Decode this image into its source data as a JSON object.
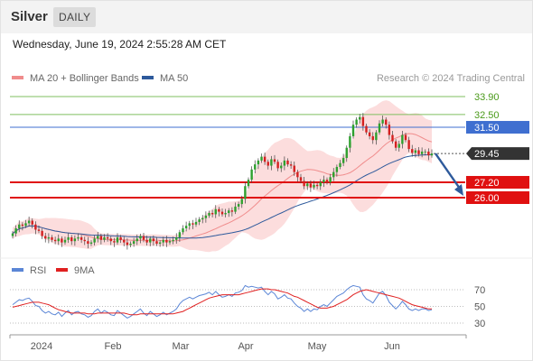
{
  "header": {
    "title": "Silver",
    "timeframe": "DAILY"
  },
  "timestamp": "Wednesday, June 19, 2024 2:55:28 AM CET",
  "copyright": "Research © 2024 Trading Central",
  "legend_main": [
    {
      "label": "MA 20 + Bollinger Bands",
      "color": "#f08c8c"
    },
    {
      "label": "MA 50",
      "color": "#2e5a9c"
    }
  ],
  "legend_rsi": [
    {
      "label": "RSI",
      "color": "#5b86d6"
    },
    {
      "label": "9MA",
      "color": "#e02020"
    }
  ],
  "colors": {
    "up": "#2ea02e",
    "down": "#d42020",
    "resistance": "#7fbf5f",
    "pivot": "#3f6fd0",
    "support": "#e01010",
    "current": "#333333",
    "forecast_arrow": "#2e5a9c"
  },
  "chart_data": {
    "type": "candlestick",
    "x_ticks": [
      "2024",
      "Feb",
      "Mar",
      "Apr",
      "May",
      "Jun"
    ],
    "ylim": [
      21.5,
      35.0
    ],
    "levels": [
      {
        "name": "resistance-2",
        "value": 33.9,
        "label": "33.90",
        "kind": "resistance"
      },
      {
        "name": "resistance-1",
        "value": 32.5,
        "label": "32.50",
        "kind": "resistance"
      },
      {
        "name": "pivot",
        "value": 31.5,
        "label": "31.50",
        "kind": "pivot"
      },
      {
        "name": "support-1",
        "value": 27.2,
        "label": "27.20",
        "kind": "support"
      },
      {
        "name": "support-2",
        "value": 26.0,
        "label": "26.00",
        "kind": "support"
      }
    ],
    "current_price": {
      "value": 29.45,
      "label": "29.45"
    },
    "forecast": {
      "from": 29.45,
      "to": 26.0
    },
    "closes": [
      23.2,
      23.6,
      23.9,
      23.8,
      24.0,
      24.2,
      23.9,
      23.5,
      23.4,
      23.0,
      22.8,
      22.9,
      22.7,
      22.6,
      22.8,
      22.5,
      22.7,
      22.9,
      22.6,
      22.8,
      22.9,
      22.7,
      22.6,
      22.4,
      22.5,
      22.8,
      23.0,
      22.7,
      22.9,
      22.8,
      22.6,
      22.5,
      22.9,
      22.7,
      22.5,
      22.3,
      22.4,
      22.6,
      22.8,
      23.0,
      22.7,
      22.5,
      22.8,
      22.6,
      22.4,
      22.5,
      22.7,
      22.5,
      22.6,
      22.7,
      22.9,
      23.3,
      23.6,
      23.8,
      24.0,
      23.9,
      24.1,
      24.3,
      24.4,
      24.6,
      24.8,
      24.7,
      25.1,
      24.9,
      24.7,
      24.8,
      25.0,
      24.9,
      25.3,
      25.5,
      25.9,
      26.9,
      27.4,
      28.2,
      28.6,
      28.9,
      29.2,
      28.8,
      28.5,
      29.0,
      28.8,
      28.3,
      28.5,
      28.9,
      28.6,
      28.5,
      28.0,
      27.6,
      27.3,
      26.9,
      27.1,
      26.8,
      27.0,
      26.9,
      27.2,
      27.4,
      27.2,
      27.6,
      28.0,
      28.4,
      28.7,
      29.1,
      29.9,
      30.8,
      31.7,
      32.1,
      32.3,
      31.6,
      31.1,
      30.8,
      30.5,
      31.1,
      31.8,
      32.1,
      31.7,
      30.9,
      30.4,
      29.9,
      30.2,
      30.9,
      30.5,
      29.8,
      29.5,
      29.7,
      29.4,
      29.6,
      29.6,
      29.3,
      29.45
    ],
    "rsi": {
      "levels": [
        70,
        50,
        30
      ],
      "ylim": [
        25,
        80
      ],
      "rsi": [
        52,
        55,
        58,
        57,
        59,
        60,
        56,
        51,
        50,
        45,
        42,
        44,
        41,
        40,
        43,
        38,
        42,
        45,
        40,
        43,
        44,
        41,
        40,
        37,
        39,
        44,
        47,
        42,
        45,
        43,
        40,
        39,
        45,
        42,
        39,
        36,
        38,
        41,
        44,
        47,
        42,
        39,
        44,
        41,
        38,
        40,
        43,
        40,
        42,
        44,
        47,
        53,
        57,
        59,
        61,
        59,
        61,
        63,
        64,
        65,
        67,
        64,
        68,
        64,
        61,
        62,
        64,
        62,
        66,
        67,
        69,
        75,
        73,
        74,
        73,
        72,
        73,
        68,
        64,
        68,
        65,
        59,
        61,
        64,
        60,
        59,
        54,
        50,
        48,
        44,
        47,
        44,
        47,
        46,
        50,
        52,
        50,
        54,
        58,
        62,
        64,
        66,
        70,
        73,
        75,
        74,
        73,
        64,
        59,
        57,
        54,
        60,
        66,
        68,
        63,
        55,
        51,
        47,
        51,
        56,
        52,
        47,
        45,
        47,
        45,
        47,
        47,
        45,
        46
      ],
      "ma9": [
        49,
        50,
        51,
        52,
        53,
        54,
        55,
        55,
        55,
        54,
        53,
        52,
        50,
        48,
        46,
        45,
        44,
        43,
        42,
        42,
        42,
        42,
        42,
        41,
        41,
        41,
        42,
        42,
        42,
        42,
        42,
        42,
        42,
        42,
        42,
        41,
        40,
        40,
        40,
        41,
        41,
        41,
        41,
        41,
        41,
        41,
        41,
        41,
        41,
        41,
        42,
        43,
        44,
        46,
        48,
        50,
        52,
        54,
        56,
        58,
        60,
        61,
        62,
        63,
        64,
        64,
        64,
        64,
        64,
        64,
        65,
        66,
        67,
        68,
        69,
        70,
        71,
        71,
        71,
        70,
        70,
        69,
        68,
        67,
        66,
        64,
        62,
        61,
        59,
        57,
        55,
        53,
        51,
        49,
        48,
        48,
        48,
        49,
        50,
        52,
        54,
        56,
        58,
        61,
        64,
        66,
        68,
        69,
        70,
        69,
        68,
        67,
        66,
        65,
        64,
        63,
        62,
        61,
        60,
        58,
        56,
        54,
        52,
        51,
        50,
        49,
        48,
        47,
        47
      ]
    }
  }
}
